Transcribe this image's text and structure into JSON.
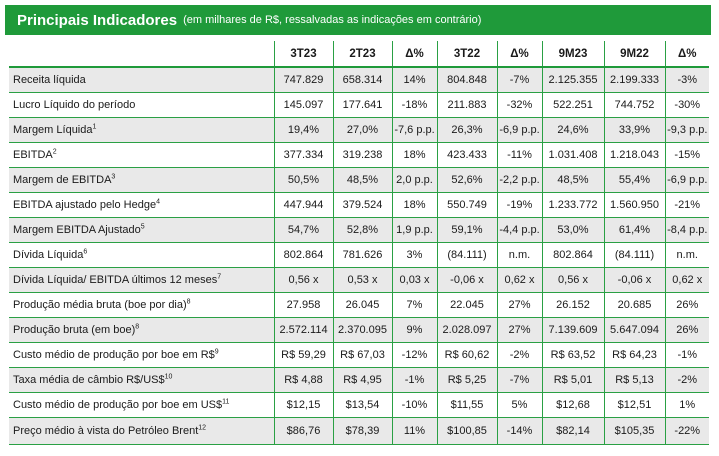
{
  "header": {
    "title": "Principais Indicadores",
    "subtitle": "(em milhares de R$, ressalvadas as indicações em contrário)"
  },
  "columns": [
    "3T23",
    "2T23",
    "Δ%",
    "3T22",
    "Δ%",
    "9M23",
    "9M22",
    "Δ%"
  ],
  "rows": [
    {
      "label": "Receita líquida",
      "sup": "",
      "values": [
        "747.829",
        "658.314",
        "14%",
        "804.848",
        "-7%",
        "2.125.355",
        "2.199.333",
        "-3%"
      ]
    },
    {
      "label": "Lucro Líquido do período",
      "sup": "",
      "values": [
        "145.097",
        "177.641",
        "-18%",
        "211.883",
        "-32%",
        "522.251",
        "744.752",
        "-30%"
      ]
    },
    {
      "label": "Margem Líquida",
      "sup": "1",
      "values": [
        "19,4%",
        "27,0%",
        "-7,6 p.p.",
        "26,3%",
        "-6,9 p.p.",
        "24,6%",
        "33,9%",
        "-9,3 p.p."
      ]
    },
    {
      "label": "EBITDA",
      "sup": "2",
      "values": [
        "377.334",
        "319.238",
        "18%",
        "423.433",
        "-11%",
        "1.031.408",
        "1.218.043",
        "-15%"
      ]
    },
    {
      "label": "Margem de EBITDA",
      "sup": "3",
      "values": [
        "50,5%",
        "48,5%",
        "2,0 p.p.",
        "52,6%",
        "-2,2 p.p.",
        "48,5%",
        "55,4%",
        "-6,9 p.p."
      ]
    },
    {
      "label": "EBITDA ajustado pelo Hedge",
      "sup": "4",
      "values": [
        "447.944",
        "379.524",
        "18%",
        "550.749",
        "-19%",
        "1.233.772",
        "1.560.950",
        "-21%"
      ]
    },
    {
      "label": "Margem EBITDA Ajustado",
      "sup": "5",
      "values": [
        "54,7%",
        "52,8%",
        "1,9 p.p.",
        "59,1%",
        "-4,4 p.p.",
        "53,0%",
        "61,4%",
        "-8,4 p.p."
      ]
    },
    {
      "label": "Dívida Líquida",
      "sup": "6",
      "values": [
        "802.864",
        "781.626",
        "3%",
        "(84.111)",
        "n.m.",
        "802.864",
        "(84.111)",
        "n.m."
      ]
    },
    {
      "label": "Dívida Líquida/ EBITDA últimos 12 meses",
      "sup": "7",
      "values": [
        "0,56 x",
        "0,53 x",
        "0,03 x",
        "-0,06 x",
        "0,62 x",
        "0,56 x",
        "-0,06 x",
        "0,62 x"
      ]
    },
    {
      "label": "Produção média bruta (boe por dia)",
      "sup": "8",
      "values": [
        "27.958",
        "26.045",
        "7%",
        "22.045",
        "27%",
        "26.152",
        "20.685",
        "26%"
      ]
    },
    {
      "label": "Produção bruta (em boe)",
      "sup": "8",
      "values": [
        "2.572.114",
        "2.370.095",
        "9%",
        "2.028.097",
        "27%",
        "7.139.609",
        "5.647.094",
        "26%"
      ]
    },
    {
      "label": "Custo médio de produção por boe em R$",
      "sup": "9",
      "values": [
        "R$ 59,29",
        "R$ 67,03",
        "-12%",
        "R$ 60,62",
        "-2%",
        "R$ 63,52",
        "R$ 64,23",
        "-1%"
      ]
    },
    {
      "label": "Taxa média de câmbio R$/US$",
      "sup": "10",
      "values": [
        "R$ 4,88",
        "R$ 4,95",
        "-1%",
        "R$ 5,25",
        "-7%",
        "R$ 5,01",
        "R$ 5,13",
        "-2%"
      ]
    },
    {
      "label": "Custo médio de produção por boe em US$",
      "sup": "11",
      "values": [
        "$12,15",
        "$13,54",
        "-10%",
        "$11,55",
        "5%",
        "$12,68",
        "$12,51",
        "1%"
      ]
    },
    {
      "label": "Preço médio à vista do Petróleo Brent",
      "sup": "12",
      "values": [
        "$86,76",
        "$78,39",
        "11%",
        "$100,85",
        "-14%",
        "$82,14",
        "$105,35",
        "-22%"
      ]
    }
  ]
}
